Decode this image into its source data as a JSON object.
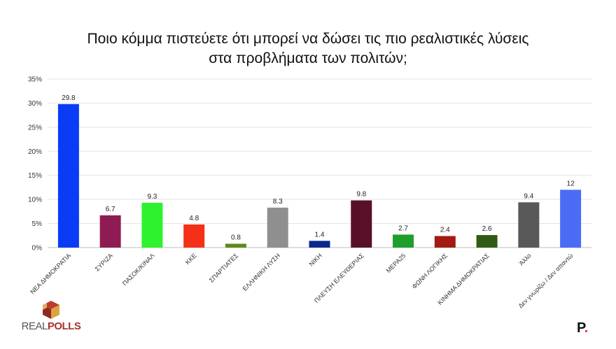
{
  "title_line1": "Ποιο κόμμα πιστεύετε ότι μπορεί να δώσει τις πιο ρεαλιστικές λύσεις",
  "title_line2": "στα προβλήματα των πολιτών;",
  "logo": {
    "real": "REAL",
    "polls": "POLLS"
  },
  "brand_mark": {
    "letter": "P",
    "dot": "."
  },
  "chart_data": {
    "type": "bar",
    "title": "Ποιο κόμμα πιστεύετε ότι μπορεί να δώσει τις πιο ρεαλιστικές λύσεις στα προβλήματα των πολιτών;",
    "xlabel": "",
    "ylabel": "",
    "ylim": [
      0,
      35
    ],
    "yticks": [
      0,
      5,
      10,
      15,
      20,
      25,
      30,
      35
    ],
    "ytick_labels": [
      "0%",
      "5%",
      "10%",
      "15%",
      "20%",
      "25%",
      "30%",
      "35%"
    ],
    "grid": true,
    "categories": [
      "ΝΕΑ ΔΗΜΟΚΡΑΤΙΑ",
      "ΣΥΡΙΖΑ",
      "ΠΑΣΟΚ/ΚΙΝΑΛ",
      "ΚΚΕ",
      "ΣΠΑΡΤΙΑΤΕΣ",
      "ΕΛΛΗΝΙΚΗ ΛΥΣΗ",
      "ΝΙΚΗ",
      "ΠΛΕΥΣΗ ΕΛΕΥΘΕΡΙΑΣ",
      "ΜΕΡΑ25",
      "ΦΩΝΗ ΛΟΓΙΚΗΣ",
      "ΚΙΝΗΜΑ ΔΗΜΟΚΡΑΤΙΑΣ",
      "Άλλο",
      "Δεν γνωρίζω / Δεν απαντώ"
    ],
    "values": [
      29.8,
      6.7,
      9.3,
      4.8,
      0.8,
      8.3,
      1.4,
      9.8,
      2.7,
      2.4,
      2.6,
      9.4,
      12
    ],
    "value_labels": [
      "29.8",
      "6.7",
      "9.3",
      "4.8",
      "0.8",
      "8.3",
      "1.4",
      "9.8",
      "2.7",
      "2.4",
      "2.6",
      "9.4",
      "12"
    ],
    "colors": [
      "#0a3cf5",
      "#8e1b52",
      "#2ef22e",
      "#f53018",
      "#5c8a1a",
      "#8f8f8f",
      "#0c2a8c",
      "#5a0f28",
      "#1f9e2a",
      "#a31a12",
      "#2f5c12",
      "#595959",
      "#4a6cf5"
    ]
  }
}
